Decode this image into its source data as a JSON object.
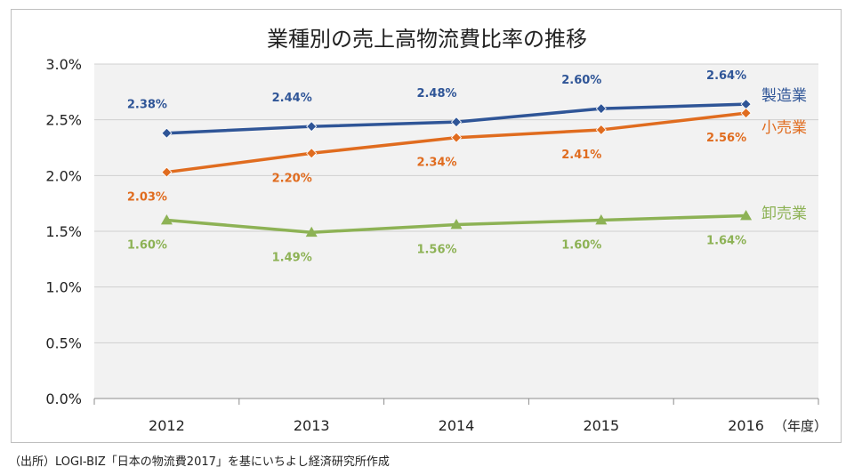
{
  "chart_data": {
    "type": "line",
    "title": "業種別の売上高物流費比率の推移",
    "categories": [
      "2012",
      "2013",
      "2014",
      "2015",
      "2016"
    ],
    "x_unit_label": "（年度）",
    "ylim": [
      0,
      3.0
    ],
    "y_ticks": [
      "0.0%",
      "0.5%",
      "1.0%",
      "1.5%",
      "2.0%",
      "2.5%",
      "3.0%"
    ],
    "y_tick_values": [
      0,
      0.5,
      1.0,
      1.5,
      2.0,
      2.5,
      3.0
    ],
    "grid": true,
    "series": [
      {
        "key": "manufacturing",
        "name": "製造業",
        "marker": "diamond",
        "color": "#2f5597",
        "values": [
          2.38,
          2.44,
          2.48,
          2.6,
          2.64
        ],
        "labels": [
          "2.38%",
          "2.44%",
          "2.48%",
          "2.60%",
          "2.64%"
        ],
        "label_pos": "above"
      },
      {
        "key": "retail",
        "name": "小売業",
        "marker": "diamond",
        "color": "#e06c1f",
        "values": [
          2.03,
          2.2,
          2.34,
          2.41,
          2.56
        ],
        "labels": [
          "2.03%",
          "2.20%",
          "2.34%",
          "2.41%",
          "2.56%"
        ],
        "label_pos": "below"
      },
      {
        "key": "wholesale",
        "name": "卸売業",
        "marker": "triangle",
        "color": "#8db255",
        "values": [
          1.6,
          1.49,
          1.56,
          1.6,
          1.64
        ],
        "labels": [
          "1.60%",
          "1.49%",
          "1.56%",
          "1.60%",
          "1.64%"
        ],
        "label_pos": "below"
      }
    ],
    "source": "（出所）LOGI-BIZ「日本の物流費2017」を基にいちよし経済研究所作成"
  }
}
